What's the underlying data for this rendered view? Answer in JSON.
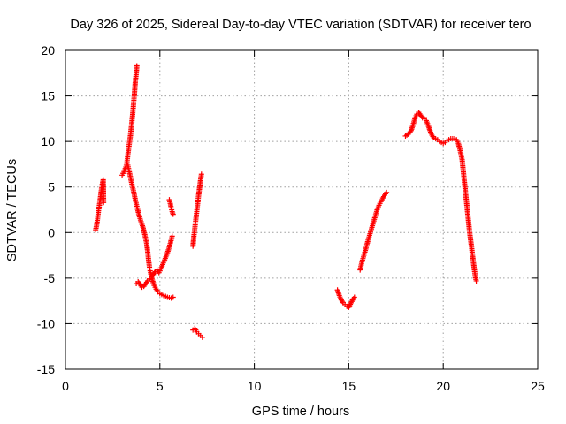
{
  "chart_data": {
    "type": "scatter",
    "title": "Day 326 of 2025, Sidereal Day-to-day VTEC variation (SDTVAR) for receiver tero",
    "xlabel": "GPS time / hours",
    "ylabel": "SDTVAR / TECUs",
    "xlim": [
      0,
      25
    ],
    "ylim": [
      -15,
      20
    ],
    "xticks": [
      0,
      5,
      10,
      15,
      20,
      25
    ],
    "yticks": [
      -15,
      -10,
      -5,
      0,
      5,
      10,
      15,
      20
    ],
    "grid": true,
    "marker": "+",
    "color": "#ff0000",
    "series": [
      {
        "points": [
          [
            1.6,
            0.3
          ],
          [
            1.65,
            0.8
          ],
          [
            1.7,
            1.5
          ],
          [
            1.75,
            2.4
          ],
          [
            1.8,
            3.0
          ],
          [
            1.85,
            3.8
          ],
          [
            1.9,
            4.6
          ],
          [
            1.95,
            5.3
          ],
          [
            2.0,
            5.8
          ],
          [
            2.02,
            3.3
          ]
        ]
      },
      {
        "points": [
          [
            3.0,
            6.3
          ],
          [
            3.1,
            6.7
          ],
          [
            3.2,
            7.2
          ],
          [
            3.25,
            7.6
          ],
          [
            3.3,
            8.5
          ],
          [
            3.35,
            9.3
          ],
          [
            3.4,
            10.0
          ],
          [
            3.45,
            10.8
          ],
          [
            3.5,
            11.8
          ],
          [
            3.55,
            12.8
          ],
          [
            3.6,
            14.0
          ],
          [
            3.65,
            15.2
          ],
          [
            3.7,
            16.6
          ],
          [
            3.75,
            17.5
          ],
          [
            3.78,
            18.3
          ]
        ]
      },
      {
        "points": [
          [
            3.3,
            7.4
          ],
          [
            3.4,
            6.5
          ],
          [
            3.5,
            5.5
          ],
          [
            3.6,
            4.6
          ],
          [
            3.7,
            3.6
          ],
          [
            3.8,
            2.7
          ],
          [
            3.9,
            1.9
          ],
          [
            4.0,
            1.2
          ],
          [
            4.1,
            0.6
          ],
          [
            4.2,
            -0.2
          ],
          [
            4.3,
            -1.2
          ],
          [
            4.35,
            -2.0
          ],
          [
            4.4,
            -3.0
          ],
          [
            4.45,
            -3.8
          ],
          [
            4.5,
            -4.4
          ],
          [
            4.6,
            -5.2
          ],
          [
            4.7,
            -5.8
          ],
          [
            4.8,
            -6.2
          ],
          [
            4.9,
            -6.5
          ],
          [
            5.0,
            -6.7
          ],
          [
            5.2,
            -6.9
          ],
          [
            5.4,
            -7.1
          ],
          [
            5.6,
            -7.2
          ],
          [
            5.7,
            -7.1
          ]
        ]
      },
      {
        "points": [
          [
            3.75,
            -5.6
          ],
          [
            3.85,
            -5.4
          ],
          [
            3.95,
            -5.7
          ],
          [
            4.05,
            -6.0
          ],
          [
            4.15,
            -5.9
          ],
          [
            4.25,
            -5.6
          ],
          [
            4.35,
            -5.3
          ],
          [
            4.45,
            -5.1
          ],
          [
            4.55,
            -4.9
          ],
          [
            4.65,
            -4.6
          ],
          [
            4.75,
            -4.3
          ],
          [
            4.85,
            -4.1
          ],
          [
            4.95,
            -4.4
          ],
          [
            5.05,
            -4.0
          ],
          [
            5.15,
            -3.5
          ],
          [
            5.25,
            -3.0
          ],
          [
            5.35,
            -2.5
          ],
          [
            5.45,
            -1.9
          ],
          [
            5.55,
            -1.2
          ],
          [
            5.65,
            -0.4
          ]
        ]
      },
      {
        "points": [
          [
            5.5,
            3.6
          ],
          [
            5.55,
            3.2
          ],
          [
            5.6,
            2.7
          ],
          [
            5.65,
            2.3
          ],
          [
            5.7,
            2.0
          ]
        ]
      },
      {
        "points": [
          [
            6.75,
            -1.5
          ],
          [
            6.8,
            -0.4
          ],
          [
            6.85,
            0.5
          ],
          [
            6.9,
            1.4
          ],
          [
            6.95,
            2.3
          ],
          [
            7.0,
            3.2
          ],
          [
            7.05,
            4.1
          ],
          [
            7.1,
            4.9
          ],
          [
            7.15,
            5.7
          ],
          [
            7.2,
            6.4
          ]
        ]
      },
      {
        "points": [
          [
            6.75,
            -10.7
          ],
          [
            6.85,
            -10.5
          ],
          [
            6.95,
            -10.9
          ],
          [
            7.05,
            -11.1
          ],
          [
            7.15,
            -11.3
          ],
          [
            7.25,
            -11.5
          ]
        ]
      },
      {
        "points": [
          [
            14.4,
            -6.3
          ],
          [
            14.5,
            -6.9
          ],
          [
            14.6,
            -7.4
          ],
          [
            14.7,
            -7.7
          ],
          [
            14.8,
            -7.9
          ],
          [
            14.9,
            -8.1
          ],
          [
            15.0,
            -8.2
          ],
          [
            15.2,
            -7.4
          ],
          [
            15.3,
            -7.1
          ]
        ]
      },
      {
        "points": [
          [
            15.6,
            -4.1
          ],
          [
            15.7,
            -3.2
          ],
          [
            15.8,
            -2.5
          ],
          [
            15.9,
            -1.8
          ],
          [
            16.0,
            -1.0
          ],
          [
            16.1,
            -0.3
          ],
          [
            16.2,
            0.4
          ],
          [
            16.3,
            1.1
          ],
          [
            16.4,
            1.8
          ],
          [
            16.5,
            2.5
          ],
          [
            16.6,
            3.0
          ],
          [
            16.7,
            3.4
          ],
          [
            16.8,
            3.8
          ],
          [
            16.9,
            4.1
          ],
          [
            17.0,
            4.4
          ]
        ]
      },
      {
        "points": [
          [
            18.0,
            10.6
          ],
          [
            18.15,
            10.8
          ],
          [
            18.3,
            11.2
          ],
          [
            18.4,
            11.8
          ],
          [
            18.5,
            12.5
          ],
          [
            18.6,
            13.0
          ],
          [
            18.7,
            13.2
          ],
          [
            18.8,
            12.9
          ],
          [
            18.9,
            12.6
          ],
          [
            19.0,
            12.5
          ],
          [
            19.1,
            12.3
          ],
          [
            19.2,
            11.8
          ],
          [
            19.3,
            11.2
          ],
          [
            19.4,
            10.7
          ],
          [
            19.5,
            10.4
          ],
          [
            19.6,
            10.3
          ],
          [
            19.7,
            10.2
          ],
          [
            19.8,
            10.0
          ],
          [
            19.9,
            9.9
          ],
          [
            20.0,
            9.8
          ],
          [
            20.1,
            9.9
          ],
          [
            20.2,
            10.1
          ],
          [
            20.3,
            10.2
          ],
          [
            20.4,
            10.3
          ],
          [
            20.5,
            10.3
          ],
          [
            20.6,
            10.3
          ],
          [
            20.7,
            10.2
          ],
          [
            20.8,
            9.8
          ],
          [
            20.9,
            9.0
          ],
          [
            21.0,
            8.0
          ],
          [
            21.05,
            7.0
          ],
          [
            21.1,
            6.0
          ],
          [
            21.15,
            5.0
          ],
          [
            21.2,
            4.0
          ],
          [
            21.25,
            3.0
          ],
          [
            21.3,
            2.0
          ],
          [
            21.35,
            1.0
          ],
          [
            21.4,
            0.0
          ],
          [
            21.45,
            -0.8
          ],
          [
            21.5,
            -1.6
          ],
          [
            21.55,
            -2.5
          ],
          [
            21.6,
            -3.3
          ],
          [
            21.65,
            -4.1
          ],
          [
            21.7,
            -4.8
          ],
          [
            21.75,
            -5.3
          ]
        ]
      }
    ]
  }
}
